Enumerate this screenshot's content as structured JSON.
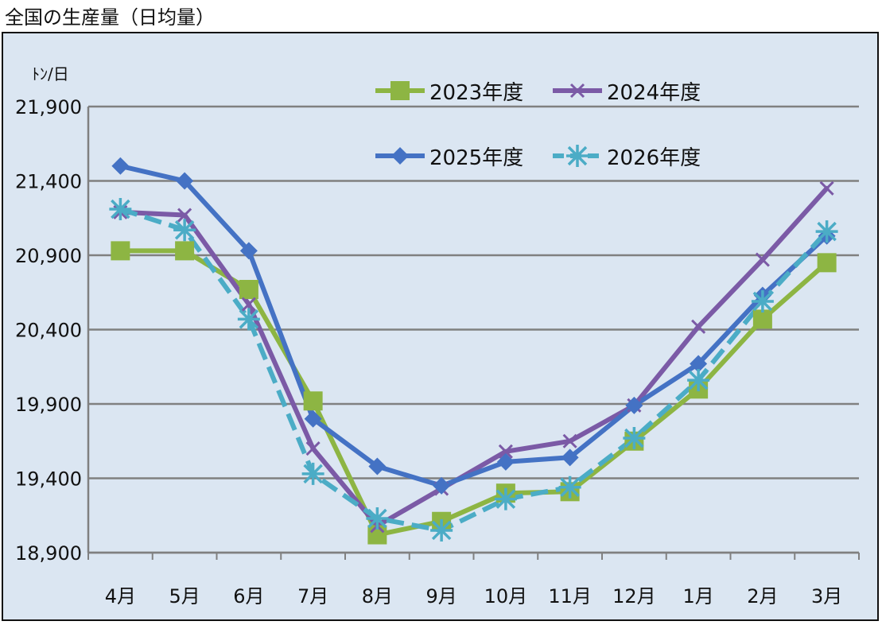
{
  "page_title": "全国の生産量（日均量）",
  "chart_data": {
    "type": "line",
    "title": "全国の生産量（日均量）",
    "unit_label": "ﾄﾝ/日",
    "categories": [
      "4月",
      "5月",
      "6月",
      "7月",
      "8月",
      "9月",
      "10月",
      "11月",
      "12月",
      "1月",
      "2月",
      "3月"
    ],
    "ylim": [
      18900,
      21900
    ],
    "yticks": [
      18900,
      19400,
      19900,
      20400,
      20900,
      21400,
      21900
    ],
    "ytick_labels": [
      "18,900",
      "19,400",
      "19,900",
      "20,400",
      "20,900",
      "21,400",
      "21,900"
    ],
    "grid": true,
    "legend_position": "top-right",
    "series": [
      {
        "name": "2023年度",
        "color": "#8db543",
        "marker": "square",
        "dash": "solid",
        "values": [
          20930,
          20930,
          20670,
          19920,
          19020,
          19110,
          19300,
          19310,
          19650,
          20000,
          20470,
          20850
        ]
      },
      {
        "name": "2024年度",
        "color": "#7b5aa6",
        "marker": "x",
        "dash": "solid",
        "values": [
          21190,
          21170,
          20570,
          19600,
          19080,
          19330,
          19580,
          19650,
          19890,
          20420,
          20870,
          21350
        ]
      },
      {
        "name": "2025年度",
        "color": "#4472c4",
        "marker": "diamond",
        "dash": "solid",
        "values": [
          21500,
          21400,
          20930,
          19800,
          19480,
          19350,
          19510,
          19540,
          19890,
          20170,
          20630,
          21030
        ]
      },
      {
        "name": "2026年度",
        "color": "#4bacc6",
        "marker": "asterisk",
        "dash": "dashed",
        "values": [
          21210,
          21070,
          20470,
          19430,
          19130,
          19050,
          19260,
          19340,
          19670,
          20060,
          20590,
          21060
        ]
      }
    ]
  }
}
